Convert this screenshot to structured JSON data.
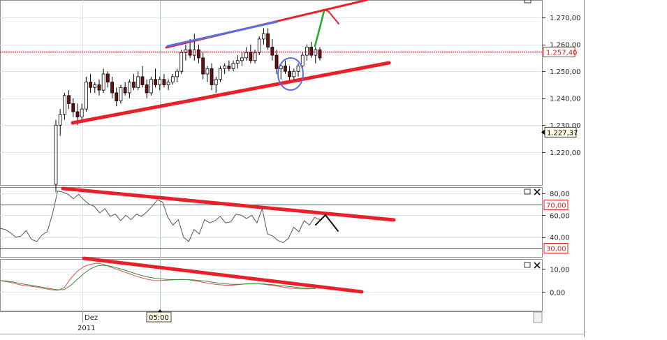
{
  "colors": {
    "candle_up": "#ffffff",
    "candle_down": "#6b1010",
    "candle_outline": "#000000",
    "trend_red": "#e8202a",
    "trend_blue": "#5a6ee0",
    "arrow_green": "#22aa33",
    "rsi_line": "#555555",
    "macd_line": "#e05050",
    "signal_line": "#3a8a3a",
    "level_70": "#dd2222",
    "level_30": "#2a7a2a",
    "price_line": "#8b0000",
    "grid": "#dde3ea",
    "cursor": "#9ec6e8"
  },
  "chart_data": [
    {
      "type": "candlestick",
      "panel": "price",
      "ylim": [
        1208,
        1276
      ],
      "y_ticks": [
        1220,
        1230,
        1240,
        1250,
        1260,
        1270
      ],
      "y_tick_labels": [
        "1.220,00",
        "1.230,00",
        "1.240,00",
        "1.250,00",
        "1.260,00",
        "1.270,00"
      ],
      "current_price": 1257.4,
      "current_price_label": "1.257,40",
      "cursor_price": 1227.37,
      "cursor_price_label": "1.227,37",
      "candles": [
        [
          1,
          1208,
          1232,
          1205,
          1230
        ],
        [
          2,
          1230,
          1236,
          1226,
          1234
        ],
        [
          3,
          1234,
          1242,
          1232,
          1241
        ],
        [
          4,
          1241,
          1243,
          1236,
          1238
        ],
        [
          5,
          1238,
          1240,
          1233,
          1235
        ],
        [
          6,
          1235,
          1238,
          1230,
          1233
        ],
        [
          7,
          1233,
          1238,
          1231,
          1236
        ],
        [
          8,
          1236,
          1248,
          1235,
          1246
        ],
        [
          9,
          1246,
          1249,
          1242,
          1244
        ],
        [
          10,
          1244,
          1246,
          1242,
          1245
        ],
        [
          11,
          1245,
          1247,
          1241,
          1243
        ],
        [
          12,
          1243,
          1251,
          1242,
          1249
        ],
        [
          13,
          1249,
          1250,
          1244,
          1246
        ],
        [
          14,
          1246,
          1248,
          1240,
          1242
        ],
        [
          15,
          1242,
          1244,
          1237,
          1239
        ],
        [
          16,
          1239,
          1245,
          1238,
          1244
        ],
        [
          17,
          1244,
          1246,
          1241,
          1242
        ],
        [
          18,
          1242,
          1247,
          1240,
          1246
        ],
        [
          19,
          1246,
          1249,
          1243,
          1244
        ],
        [
          20,
          1244,
          1250,
          1243,
          1248
        ],
        [
          21,
          1248,
          1252,
          1244,
          1245
        ],
        [
          22,
          1245,
          1247,
          1240,
          1242
        ],
        [
          23,
          1242,
          1248,
          1241,
          1247
        ],
        [
          24,
          1247,
          1251,
          1244,
          1245
        ],
        [
          25,
          1245,
          1248,
          1243,
          1247
        ],
        [
          26,
          1247,
          1249,
          1244,
          1245
        ],
        [
          27,
          1245,
          1247,
          1243,
          1246
        ],
        [
          28,
          1246,
          1249,
          1245,
          1248
        ],
        [
          29,
          1248,
          1251,
          1246,
          1250
        ],
        [
          30,
          1250,
          1258,
          1249,
          1257
        ],
        [
          31,
          1257,
          1260,
          1254,
          1258
        ],
        [
          32,
          1258,
          1262,
          1255,
          1256
        ],
        [
          33,
          1256,
          1264,
          1254,
          1258
        ],
        [
          34,
          1258,
          1260,
          1253,
          1255
        ],
        [
          35,
          1255,
          1257,
          1247,
          1249
        ],
        [
          36,
          1249,
          1252,
          1246,
          1251
        ],
        [
          37,
          1251,
          1253,
          1243,
          1245
        ],
        [
          38,
          1245,
          1248,
          1242,
          1247
        ],
        [
          39,
          1247,
          1252,
          1246,
          1251
        ],
        [
          40,
          1251,
          1253,
          1249,
          1252
        ],
        [
          41,
          1252,
          1254,
          1250,
          1251
        ],
        [
          42,
          1251,
          1254,
          1250,
          1253
        ],
        [
          43,
          1253,
          1256,
          1251,
          1254
        ],
        [
          44,
          1254,
          1257,
          1252,
          1255
        ],
        [
          45,
          1255,
          1259,
          1254,
          1257
        ],
        [
          46,
          1257,
          1260,
          1253,
          1254
        ],
        [
          47,
          1254,
          1258,
          1253,
          1257
        ],
        [
          48,
          1257,
          1263,
          1256,
          1262
        ],
        [
          49,
          1262,
          1266,
          1260,
          1264
        ],
        [
          50,
          1264,
          1266,
          1258,
          1259
        ],
        [
          51,
          1259,
          1262,
          1254,
          1256
        ],
        [
          52,
          1256,
          1258,
          1249,
          1251
        ],
        [
          53,
          1251,
          1253,
          1247,
          1252
        ],
        [
          54,
          1252,
          1254,
          1249,
          1250
        ],
        [
          55,
          1250,
          1252,
          1246,
          1248
        ],
        [
          56,
          1248,
          1251,
          1246,
          1250
        ],
        [
          57,
          1250,
          1253,
          1248,
          1252
        ],
        [
          58,
          1252,
          1257,
          1251,
          1256
        ],
        [
          59,
          1256,
          1260,
          1254,
          1259
        ],
        [
          60,
          1259,
          1261,
          1255,
          1256
        ],
        [
          61,
          1256,
          1259,
          1253,
          1258
        ],
        [
          62,
          1258,
          1259,
          1254,
          1255
        ]
      ]
    },
    {
      "type": "line",
      "panel": "rsi",
      "ylim": [
        22,
        85
      ],
      "y_ticks": [
        40,
        60,
        80
      ],
      "y_tick_labels": [
        "40,00",
        "60,00",
        "80,00"
      ],
      "level_lines": [
        70,
        30
      ],
      "level_labels": [
        "70,00",
        "30,00"
      ],
      "x": [
        1,
        2,
        3,
        4,
        5,
        6,
        7,
        8,
        9,
        10,
        11,
        12,
        13,
        14,
        15,
        16,
        17,
        18,
        19,
        20,
        21,
        22,
        23,
        24,
        25,
        26,
        27,
        28,
        29,
        30,
        31,
        32,
        33,
        34,
        35,
        36,
        37,
        38,
        39,
        40,
        41,
        42,
        43,
        44,
        45,
        46,
        47,
        48,
        49,
        50,
        51,
        52,
        53,
        54,
        55,
        56,
        57,
        58,
        59,
        60,
        61,
        62
      ],
      "values": [
        48,
        47,
        44,
        40,
        41,
        46,
        38,
        36,
        42,
        45,
        61,
        82,
        81,
        79,
        75,
        79,
        74,
        70,
        68,
        62,
        66,
        59,
        61,
        55,
        60,
        56,
        61,
        59,
        63,
        68,
        74,
        72,
        58,
        51,
        56,
        40,
        36,
        47,
        43,
        56,
        53,
        55,
        59,
        53,
        54,
        61,
        60,
        57,
        60,
        53,
        66,
        43,
        41,
        37,
        35,
        39,
        49,
        45,
        55,
        51,
        58,
        56
      ]
    },
    {
      "type": "line",
      "panel": "macd",
      "ylim": [
        -8,
        14
      ],
      "y_ticks": [
        0,
        10
      ],
      "y_tick_labels": [
        "0,00",
        "10,00"
      ],
      "series": [
        {
          "values": [
            5,
            4.5,
            4,
            3.2,
            2.8,
            2.5,
            2,
            1.5,
            1,
            0.8,
            2,
            6,
            9,
            11,
            12,
            12.5,
            12,
            11,
            10,
            9,
            8,
            7,
            6.2,
            5.5,
            5,
            5,
            5.2,
            5.3,
            5.5,
            5.4,
            5,
            4.5,
            4,
            3.5,
            3.2,
            3,
            3,
            3.2,
            3.5,
            3.6,
            3.6,
            3.4,
            3,
            2.6,
            2.2,
            1.8,
            1.5,
            1.4,
            1.4,
            1.5
          ]
        },
        {
          "values": [
            5,
            4.8,
            4.4,
            3.8,
            3.3,
            2.9,
            2.4,
            1.9,
            1.4,
            1,
            1.1,
            3,
            5.5,
            8,
            10,
            11.3,
            11.6,
            11.3,
            10.6,
            9.8,
            8.9,
            8,
            7.2,
            6.5,
            6,
            5.7,
            5.5,
            5.4,
            5.4,
            5.4,
            5.3,
            5,
            4.7,
            4.3,
            3.9,
            3.6,
            3.4,
            3.4,
            3.5,
            3.6,
            3.6,
            3.5,
            3.3,
            3,
            2.7,
            2.4,
            2.1,
            1.8,
            1.6,
            1.5
          ]
        }
      ]
    }
  ],
  "ui": {
    "x_label_month": "Dez",
    "x_label_year": "2011",
    "x_label_cursor_time": "05:00"
  }
}
